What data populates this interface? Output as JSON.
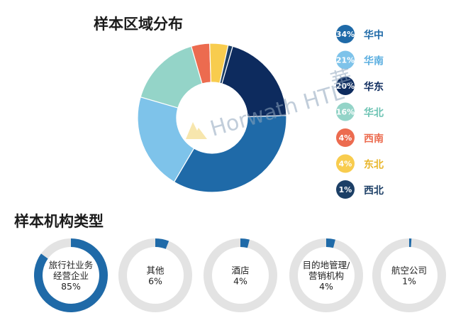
{
  "section1": {
    "title": "样本区域分布"
  },
  "section2": {
    "title": "样本机构类型"
  },
  "watermark": {
    "text": "Horwath HTL",
    "glyph": "華"
  },
  "chart_data": [
    {
      "type": "pie",
      "title": "样本区域分布",
      "slices": [
        {
          "label": "华中",
          "value": 34,
          "display": "34%",
          "color": "#1f6aa8",
          "label_color": "#1f6aa8"
        },
        {
          "label": "华南",
          "value": 21,
          "display": "21%",
          "color": "#7ec3ea",
          "label_color": "#5aaee0"
        },
        {
          "label": "华东",
          "value": 20,
          "display": "20%",
          "color": "#0d2b5e",
          "label_color": "#0d2b5e"
        },
        {
          "label": "华北",
          "value": 16,
          "display": "16%",
          "color": "#94d4c8",
          "label_color": "#6cc3b3"
        },
        {
          "label": "西南",
          "value": 4,
          "display": "4%",
          "color": "#ec6b4f",
          "label_color": "#ec6b4f"
        },
        {
          "label": "东北",
          "value": 4,
          "display": "4%",
          "color": "#f8cc4e",
          "label_color": "#e8b52a"
        },
        {
          "label": "西北",
          "value": 1,
          "display": "1%",
          "color": "#1c3f66",
          "label_color": "#1c3f66"
        }
      ],
      "legend": "right",
      "donut": true
    },
    {
      "type": "pie",
      "title": "样本机构类型",
      "items": [
        {
          "label_lines": [
            "旅行社业务",
            "经营企业"
          ],
          "value": 85,
          "display": "85%"
        },
        {
          "label_lines": [
            "其他"
          ],
          "value": 6,
          "display": "6%"
        },
        {
          "label_lines": [
            "酒店"
          ],
          "value": 4,
          "display": "4%"
        },
        {
          "label_lines": [
            "目的地管理/",
            "营销机构"
          ],
          "value": 4,
          "display": "4%"
        },
        {
          "label_lines": [
            "航空公司"
          ],
          "value": 1,
          "display": "1%"
        }
      ],
      "colors": {
        "fill": "#1f6aa8",
        "track": "#e3e3e3"
      }
    }
  ]
}
